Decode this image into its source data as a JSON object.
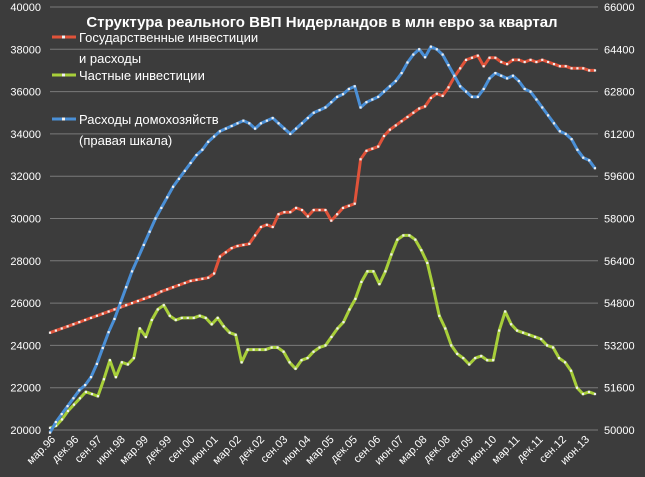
{
  "chart_data": {
    "type": "line",
    "title": "Структура реального ВВП Нидерландов в млн евро за квартал",
    "left_axis": {
      "ylim": [
        20000,
        40000
      ],
      "ticks": [
        20000,
        22000,
        24000,
        26000,
        28000,
        30000,
        32000,
        34000,
        36000,
        38000,
        40000
      ]
    },
    "right_axis": {
      "ylim": [
        50000,
        66000
      ],
      "ticks": [
        50000,
        51600,
        53200,
        54800,
        56400,
        58000,
        59600,
        61200,
        62800,
        64400,
        66000
      ]
    },
    "x_tick_labels": [
      "мар.96",
      "дек.96",
      "сен.97",
      "июн.98",
      "мар.99",
      "дек.99",
      "сен.00",
      "июн.01",
      "мар.02",
      "дек.02",
      "сен.03",
      "июн.04",
      "мар.05",
      "дек.05",
      "сен.06",
      "июн.07",
      "мар.08",
      "дек.08",
      "сен.09",
      "июн.10",
      "мар.11",
      "дек.11",
      "сен.12",
      "июн.13"
    ],
    "grid": "horizontal",
    "legend_position": "top-left",
    "series": [
      {
        "name_lines": [
          "Государственные инвестиции",
          "и расходы"
        ],
        "axis": "left",
        "color": "#e0533a",
        "values": [
          24600,
          24700,
          24800,
          24900,
          25000,
          25100,
          25200,
          25300,
          25400,
          25500,
          25600,
          25700,
          25800,
          25900,
          26000,
          26100,
          26200,
          26300,
          26400,
          26550,
          26650,
          26750,
          26850,
          26950,
          27050,
          27100,
          27150,
          27200,
          27400,
          28200,
          28400,
          28600,
          28700,
          28750,
          28800,
          29200,
          29600,
          29700,
          29600,
          30200,
          30300,
          30300,
          30500,
          30400,
          30100,
          30400,
          30400,
          30400,
          29900,
          30200,
          30500,
          30600,
          30700,
          32800,
          33200,
          33300,
          33400,
          33900,
          34200,
          34400,
          34600,
          34800,
          35000,
          35200,
          35300,
          35700,
          35900,
          35800,
          36200,
          36700,
          37100,
          37500,
          37600,
          37700,
          37200,
          37600,
          37600,
          37400,
          37300,
          37500,
          37500,
          37400,
          37500,
          37400,
          37500,
          37400,
          37300,
          37200,
          37200,
          37100,
          37100,
          37100,
          37000,
          37000
        ]
      },
      {
        "name_lines": [
          "Частные инвестиции"
        ],
        "axis": "left",
        "color": "#a8cf3a",
        "values": [
          20100,
          20200,
          20500,
          20900,
          21200,
          21500,
          21800,
          21700,
          21600,
          22400,
          23300,
          22500,
          23200,
          23100,
          23400,
          24800,
          24400,
          25200,
          25700,
          25900,
          25400,
          25200,
          25300,
          25300,
          25300,
          25400,
          25300,
          25000,
          25300,
          24900,
          24600,
          24500,
          23200,
          23800,
          23800,
          23800,
          23800,
          23900,
          23900,
          23700,
          23200,
          22900,
          23300,
          23400,
          23700,
          23900,
          24000,
          24400,
          24800,
          25100,
          25700,
          26200,
          27000,
          27500,
          27500,
          26900,
          27500,
          28300,
          29000,
          29200,
          29200,
          29000,
          28500,
          27900,
          26700,
          25400,
          24800,
          24000,
          23600,
          23400,
          23100,
          23400,
          23500,
          23300,
          23300,
          24700,
          25600,
          25000,
          24700,
          24600,
          24500,
          24400,
          24300,
          24000,
          23900,
          23400,
          23200,
          22800,
          22000,
          21700,
          21800,
          21700
        ]
      },
      {
        "name_lines": [
          "Расходы домохозяйств",
          "(правая шкала)"
        ],
        "axis": "right",
        "color": "#4a8fd6",
        "values": [
          49900,
          50300,
          50600,
          50900,
          51200,
          51500,
          51700,
          52000,
          52500,
          53100,
          53700,
          54200,
          54800,
          55400,
          56000,
          56500,
          57000,
          57500,
          58000,
          58400,
          58800,
          59200,
          59500,
          59800,
          60100,
          60400,
          60600,
          60900,
          61100,
          61300,
          61400,
          61500,
          61600,
          61700,
          61600,
          61400,
          61600,
          61700,
          61800,
          61600,
          61400,
          61200,
          61400,
          61600,
          61800,
          62000,
          62100,
          62200,
          62400,
          62600,
          62700,
          62900,
          63000,
          62200,
          62400,
          62500,
          62600,
          62800,
          63000,
          63200,
          63500,
          63900,
          64200,
          64400,
          64100,
          64500,
          64400,
          64200,
          63800,
          63400,
          63000,
          62800,
          62600,
          62600,
          62900,
          63300,
          63500,
          63400,
          63300,
          63400,
          63200,
          62900,
          62800,
          62500,
          62200,
          61900,
          61600,
          61300,
          61200,
          61000,
          60600,
          60300,
          60200,
          59900
        ]
      }
    ]
  }
}
